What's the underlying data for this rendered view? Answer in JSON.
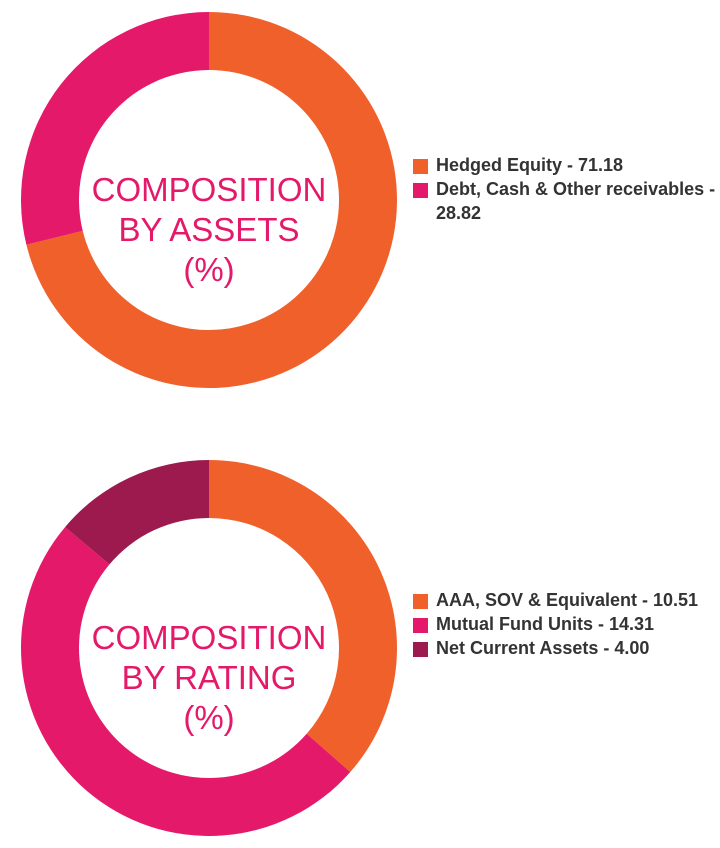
{
  "colors": {
    "orange": "#f0602b",
    "pink": "#e5196a",
    "maroon": "#9c1a4e",
    "text": "#333333"
  },
  "chart_data": [
    {
      "type": "pie",
      "center_title_lines": [
        "COMPOSITION",
        "BY ASSETS",
        "(%)"
      ],
      "slices": [
        {
          "label": "Hedged Equity - 71.18",
          "value": 71.18,
          "color": "#f0602b"
        },
        {
          "label": "Debt, Cash & Other receivables - 28.82",
          "value": 28.82,
          "color": "#e5196a"
        }
      ],
      "legend_position": "right"
    },
    {
      "type": "pie",
      "center_title_lines": [
        "COMPOSITION",
        "BY RATING",
        "(%)"
      ],
      "slices": [
        {
          "label": "AAA, SOV & Equivalent - 10.51",
          "value": 10.51,
          "color": "#f0602b"
        },
        {
          "label": "Mutual Fund Units - 14.31",
          "value": 14.31,
          "color": "#e5196a"
        },
        {
          "label": "Net Current Assets - 4.00",
          "value": 4.0,
          "color": "#9c1a4e"
        }
      ],
      "legend_position": "right"
    }
  ]
}
